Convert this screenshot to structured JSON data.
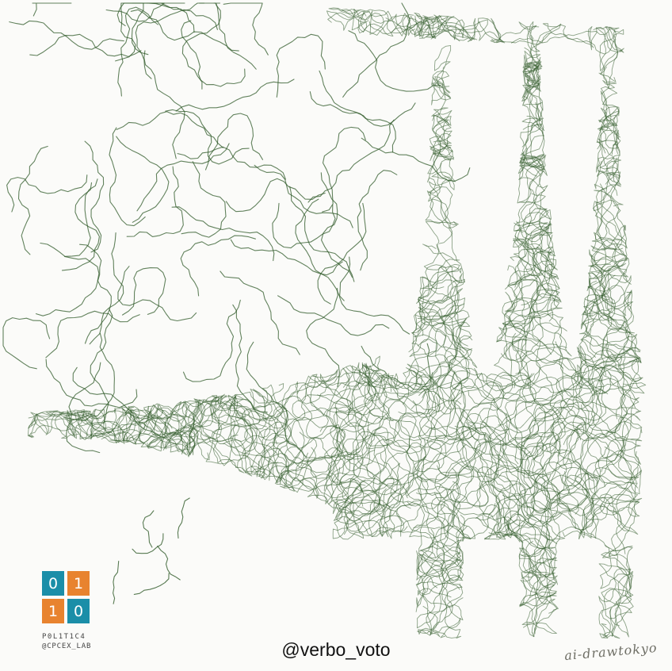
{
  "artwork": {
    "subject": "scribbled pen-line drawing",
    "stroke_color": "#2f5a28",
    "background": "#fbfbf9"
  },
  "logo": {
    "tiles": [
      "0",
      "1",
      "1",
      "0"
    ],
    "name": "P0L1T1C4",
    "handle": "@CPCEX_LAB",
    "colors": {
      "teal": "#1b8ea8",
      "orange": "#e8832f"
    }
  },
  "footer": {
    "handle": "@verbo_voto",
    "signature": "ai-drawtokyo"
  }
}
